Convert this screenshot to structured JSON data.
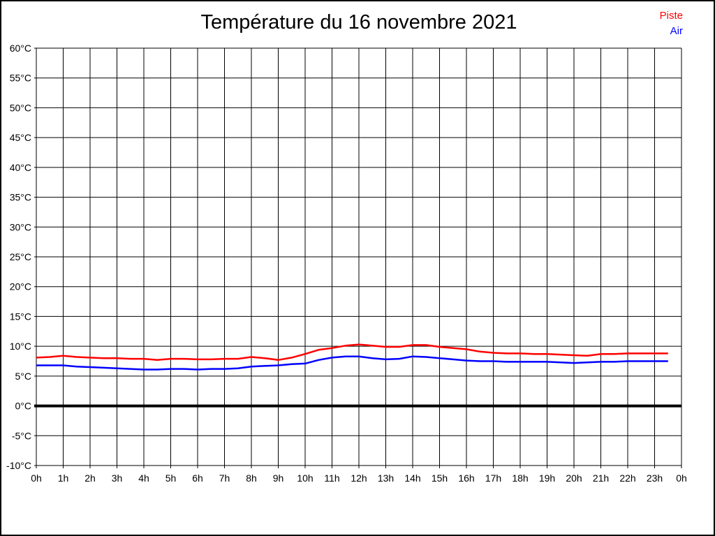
{
  "page": {
    "background": "#ffffff",
    "border_color": "#000000"
  },
  "title": "Température du 16 novembre 2021",
  "legend": {
    "position": "top-right",
    "items": [
      {
        "label": "Piste",
        "color": "#ff0000"
      },
      {
        "label": "Air",
        "color": "#0000ff"
      }
    ]
  },
  "chart_data": {
    "type": "line",
    "title": "Température du 16 novembre 2021",
    "xlabel": "",
    "ylabel": "",
    "xlim": [
      0,
      24
    ],
    "ylim": [
      -10,
      60
    ],
    "y_step": 5,
    "grid": true,
    "grid_color": "#000000",
    "zero_line_emphasized": true,
    "zero_line_width": 4,
    "legend_position": "top-right",
    "x_ticks": [
      0,
      1,
      2,
      3,
      4,
      5,
      6,
      7,
      8,
      9,
      10,
      11,
      12,
      13,
      14,
      15,
      16,
      17,
      18,
      19,
      20,
      21,
      22,
      23,
      24
    ],
    "x_tick_labels": [
      "0h",
      "1h",
      "2h",
      "3h",
      "4h",
      "5h",
      "6h",
      "7h",
      "8h",
      "9h",
      "10h",
      "11h",
      "12h",
      "13h",
      "14h",
      "15h",
      "16h",
      "17h",
      "18h",
      "19h",
      "20h",
      "21h",
      "22h",
      "23h",
      "0h"
    ],
    "y_ticks": [
      60,
      55,
      50,
      45,
      40,
      35,
      30,
      25,
      20,
      15,
      10,
      5,
      0,
      -5,
      -10
    ],
    "y_tick_labels": [
      "60°C",
      "55°C",
      "50°C",
      "45°C",
      "40°C",
      "35°C",
      "30°C",
      "25°C",
      "20°C",
      "15°C",
      "10°C",
      "5°C",
      "0°C",
      "-5°C",
      "-10°C"
    ],
    "x": [
      0,
      0.5,
      1,
      1.5,
      2,
      2.5,
      3,
      3.5,
      4,
      4.5,
      5,
      5.5,
      6,
      6.5,
      7,
      7.5,
      8,
      8.5,
      9,
      9.5,
      10,
      10.5,
      11,
      11.5,
      12,
      12.5,
      13,
      13.5,
      14,
      14.5,
      15,
      15.5,
      16,
      16.5,
      17,
      17.5,
      18,
      18.5,
      19,
      19.5,
      20,
      20.5,
      21,
      21.5,
      22,
      22.5,
      23,
      23.5
    ],
    "series": [
      {
        "name": "Piste",
        "color": "#ff0000",
        "values": [
          8.1,
          8.2,
          8.4,
          8.2,
          8.1,
          8.0,
          8.0,
          7.9,
          7.9,
          7.7,
          7.9,
          7.9,
          7.8,
          7.8,
          7.9,
          7.9,
          8.2,
          8.0,
          7.7,
          8.1,
          8.7,
          9.4,
          9.7,
          10.1,
          10.3,
          10.1,
          9.9,
          9.9,
          10.2,
          10.2,
          9.9,
          9.7,
          9.5,
          9.1,
          8.9,
          8.8,
          8.8,
          8.7,
          8.7,
          8.6,
          8.5,
          8.4,
          8.7,
          8.7,
          8.8,
          8.8,
          8.8,
          8.8
        ]
      },
      {
        "name": "Air",
        "color": "#0000ff",
        "values": [
          6.8,
          6.8,
          6.8,
          6.6,
          6.5,
          6.4,
          6.3,
          6.2,
          6.1,
          6.1,
          6.2,
          6.2,
          6.1,
          6.2,
          6.2,
          6.3,
          6.6,
          6.7,
          6.8,
          7.0,
          7.1,
          7.7,
          8.1,
          8.3,
          8.3,
          8.0,
          7.8,
          7.9,
          8.3,
          8.2,
          8.0,
          7.8,
          7.6,
          7.5,
          7.5,
          7.4,
          7.4,
          7.4,
          7.4,
          7.3,
          7.2,
          7.3,
          7.4,
          7.4,
          7.5,
          7.5,
          7.5,
          7.5
        ]
      }
    ]
  }
}
